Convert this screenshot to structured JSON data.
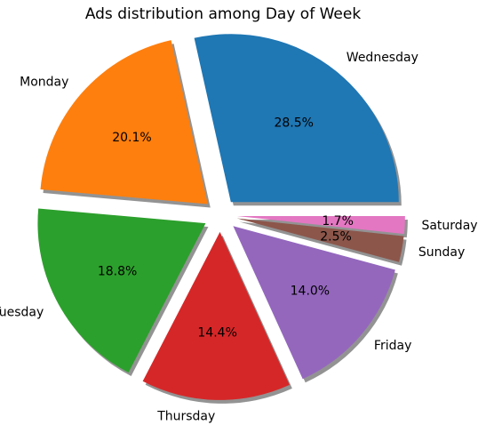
{
  "chart_data": {
    "type": "pie",
    "title": "Ads distribution among Day of Week",
    "start_angle_deg": 0,
    "direction": "counterclockwise",
    "shadow": true,
    "exploded": true,
    "slices": [
      {
        "label": "Wednesday",
        "value": 28.5,
        "pct_label": "28.5%",
        "color": "#1f77b4"
      },
      {
        "label": "Monday",
        "value": 20.1,
        "pct_label": "20.1%",
        "color": "#ff7f0e"
      },
      {
        "label": "Tuesday",
        "value": 18.8,
        "pct_label": "18.8%",
        "color": "#2ca02c"
      },
      {
        "label": "Thursday",
        "value": 14.4,
        "pct_label": "14.4%",
        "color": "#d62728"
      },
      {
        "label": "Friday",
        "value": 14.0,
        "pct_label": "14.0%",
        "color": "#9467bd"
      },
      {
        "label": "Sunday",
        "value": 2.5,
        "pct_label": "2.5%",
        "color": "#8c564b"
      },
      {
        "label": "Saturday",
        "value": 1.7,
        "pct_label": "1.7%",
        "color": "#e377c2"
      }
    ]
  }
}
